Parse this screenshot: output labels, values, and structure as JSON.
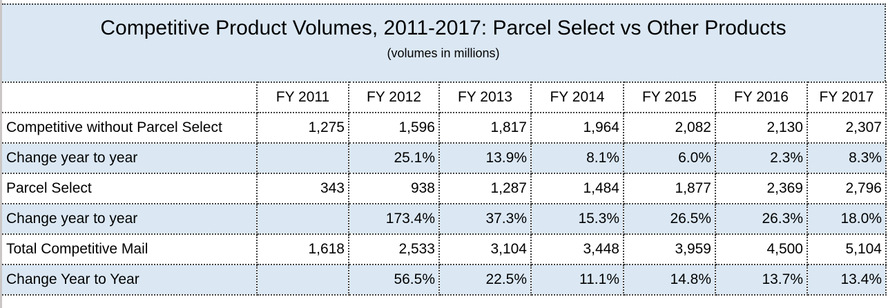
{
  "chart_data": {
    "type": "table",
    "title": "Competitive Product Volumes, 2011-2017: Parcel Select vs Other Products",
    "subtitle": "(volumes in millions)",
    "columns": [
      "",
      "FY 2011",
      "FY 2012",
      "FY 2013",
      "FY 2014",
      "FY 2015",
      "FY 2016",
      "FY 2017"
    ],
    "rows": [
      {
        "label": "Competitive without Parcel Select",
        "shaded": false,
        "values": [
          "1,275",
          "1,596",
          "1,817",
          "1,964",
          "2,082",
          "2,130",
          "2,307"
        ]
      },
      {
        "label": "Change year to year",
        "shaded": true,
        "values": [
          "",
          "25.1%",
          "13.9%",
          "8.1%",
          "6.0%",
          "2.3%",
          "8.3%"
        ]
      },
      {
        "label": "Parcel Select",
        "shaded": false,
        "values": [
          "343",
          "938",
          "1,287",
          "1,484",
          "1,877",
          "2,369",
          "2,796"
        ]
      },
      {
        "label": "Change year to year",
        "shaded": true,
        "values": [
          "",
          "173.4%",
          "37.3%",
          "15.3%",
          "26.5%",
          "26.3%",
          "18.0%"
        ]
      },
      {
        "label": "Total Competitive Mail",
        "shaded": false,
        "values": [
          "1,618",
          "2,533",
          "3,104",
          "3,448",
          "3,959",
          "4,500",
          "5,104"
        ]
      },
      {
        "label": "Change Year to Year",
        "shaded": true,
        "values": [
          "",
          "56.5%",
          "22.5%",
          "11.1%",
          "14.8%",
          "13.7%",
          "13.4%"
        ]
      }
    ],
    "colors": {
      "shaded_row_fill": "#DBE8F4",
      "title_fill": "#DBE8F4",
      "border": "#3F3F3F",
      "text": "#000000"
    },
    "layout": {
      "grid": "dotted",
      "label_column_align": "left",
      "value_align": "right",
      "header_align": "center"
    }
  }
}
